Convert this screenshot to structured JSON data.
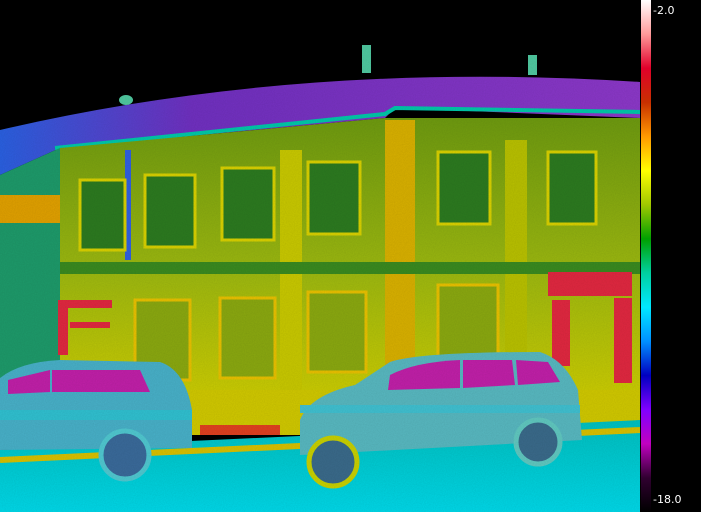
{
  "scale": {
    "max_label": "-2.0",
    "min_label": "-18.0",
    "palette": [
      "#ffffff",
      "#ff9a9a",
      "#e0002a",
      "#c83000",
      "#ff9900",
      "#ffff00",
      "#a0c800",
      "#00a000",
      "#00d0a0",
      "#00e8ff",
      "#0090ff",
      "#0000c0",
      "#8000ff",
      "#c000c0",
      "#300030",
      "#000000"
    ]
  },
  "image": {
    "subject": "thermal-building-facade",
    "colors": {
      "sky": "#000000",
      "roof": "#6a2ab8",
      "roof_edge": "#00c8b4",
      "facade": "#7aa010",
      "facade_warm": "#d8d800",
      "window": "#2e7a1e",
      "door_frame": "#e02840",
      "car_body": "#48b8c8",
      "car_window": "#c020a8",
      "street": "#00b8c8",
      "sidewalk": "#e0d000"
    }
  }
}
